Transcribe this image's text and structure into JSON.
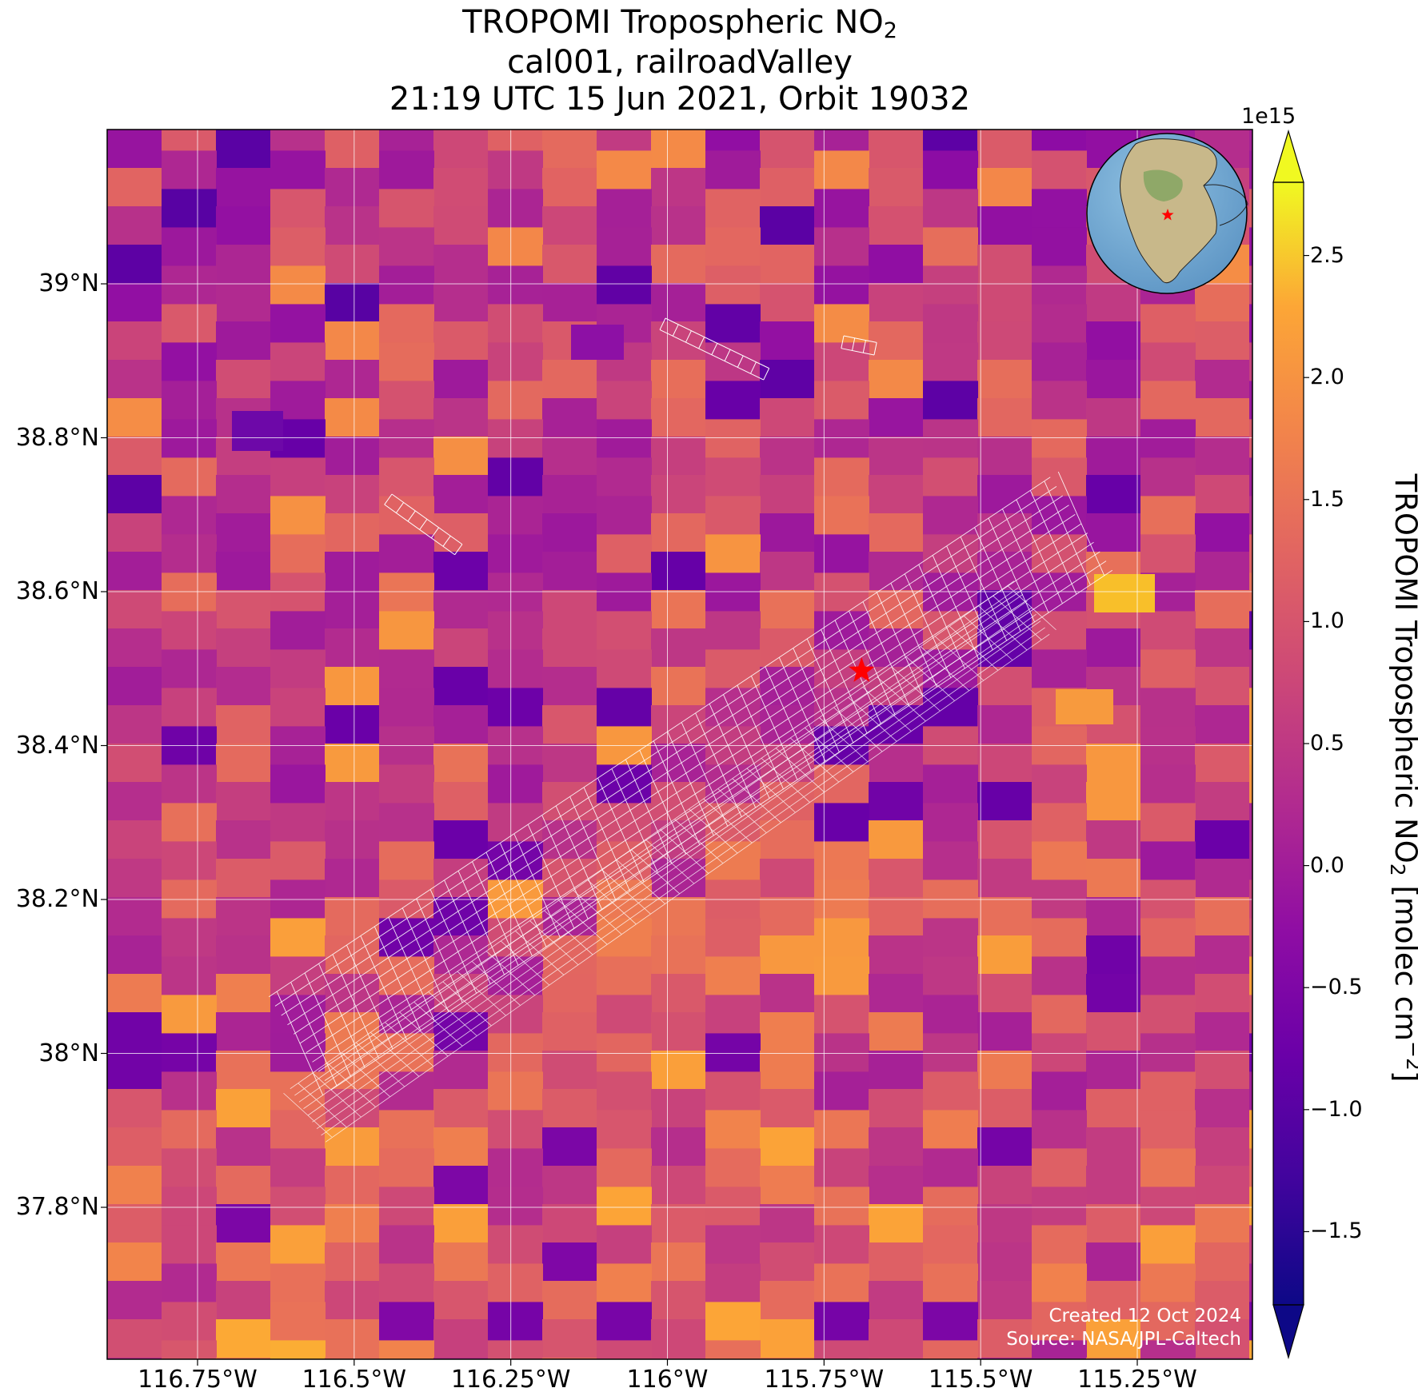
{
  "title": {
    "line1_main": "TROPOMI Tropospheric NO",
    "line1_sub": "2",
    "line2": "cal001, railroadValley",
    "line3": "21:19 UTC 15 Jun 2021, Orbit 19032"
  },
  "axes": {
    "x_ticks": [
      "116.75°W",
      "116.5°W",
      "116.25°W",
      "116°W",
      "115.75°W",
      "115.5°W",
      "115.25°W"
    ],
    "y_ticks": [
      "39°N",
      "38.8°N",
      "38.6°N",
      "38.4°N",
      "38.2°N",
      "38°N",
      "37.8°N"
    ]
  },
  "colorbar": {
    "exponent": "1e15",
    "ticks": [
      "2.5",
      "2.0",
      "1.5",
      "1.0",
      "0.5",
      "0.0",
      "−0.5",
      "−1.0",
      "−1.5"
    ],
    "label_main": "TROPOMI Tropospheric NO",
    "label_sub": "2",
    "label_unit": " [molec cm",
    "label_sup": "−2",
    "label_end": "]",
    "colormap": "plasma",
    "extend": "both"
  },
  "map_data": {
    "type": "heatmap",
    "lon_ticks": [
      -116.75,
      -116.5,
      -116.25,
      -116.0,
      -115.75,
      -115.5,
      -115.25
    ],
    "lat_ticks": [
      39.0,
      38.8,
      38.6,
      38.4,
      38.2,
      38.0,
      37.8
    ],
    "value_range": [
      -1.8,
      2.8
    ],
    "units": "molec cm-2",
    "scale": 1000000000000000.0,
    "site_marker": {
      "name": "railroadValley",
      "lon": -115.69,
      "lat": 38.497,
      "color": "#ff0000",
      "symbol": "star"
    },
    "grid": true,
    "inset_globe": {
      "position": "top-right",
      "region": "North America"
    }
  },
  "credits": {
    "created": "Created 12 Oct 2024",
    "source": "Source: NASA/JPL-Caltech"
  }
}
